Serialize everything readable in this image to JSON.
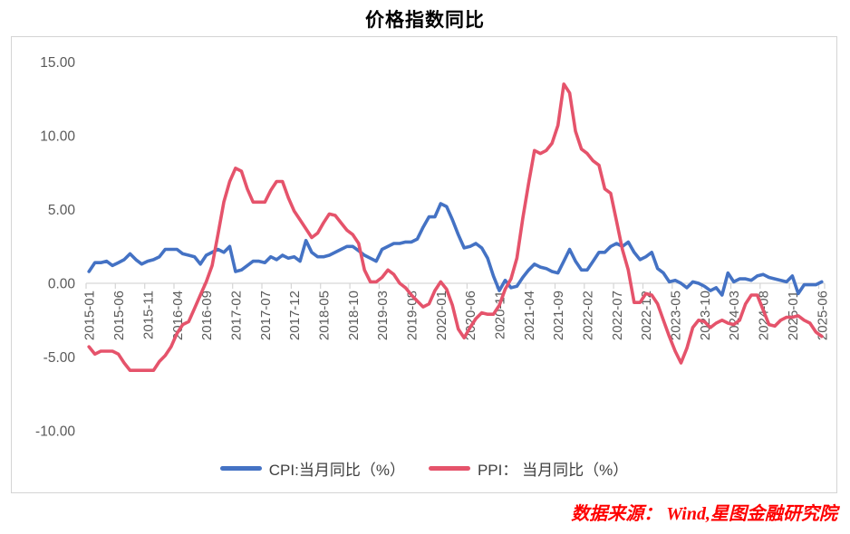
{
  "title": "价格指数同比",
  "source_note": "数据来源： Wind,星图金融研究院",
  "legend": [
    {
      "label": "CPI:当月同比（%）",
      "color": "#4472C4"
    },
    {
      "label": "PPI： 当月同比（%）",
      "color": "#E5536B"
    }
  ],
  "chart_data": {
    "type": "line",
    "title": "价格指数同比",
    "xlabel": "",
    "ylabel": "",
    "ylim": [
      -10,
      15
    ],
    "grid": false,
    "legend_position": "bottom",
    "y_ticks": [
      15,
      10,
      5,
      0,
      -5,
      -10
    ],
    "y_tick_labels": [
      "15.00",
      "10.00",
      "5.00",
      "0.00",
      "-5.00",
      "-10.00"
    ],
    "x_tick_labels": [
      "2015-01",
      "2015-06",
      "2015-11",
      "2016-04",
      "2016-09",
      "2017-02",
      "2017-07",
      "2017-12",
      "2018-05",
      "2018-10",
      "2019-03",
      "2019-08",
      "2020-01",
      "2020-06",
      "2020-11",
      "2021-04",
      "2021-09",
      "2022-02",
      "2022-07",
      "2022-12",
      "2023-05",
      "2023-10",
      "2024-03",
      "2024-08",
      "2025-01",
      "2025-06"
    ],
    "x": [
      "2015-01",
      "2015-02",
      "2015-03",
      "2015-04",
      "2015-05",
      "2015-06",
      "2015-07",
      "2015-08",
      "2015-09",
      "2015-10",
      "2015-11",
      "2015-12",
      "2016-01",
      "2016-02",
      "2016-03",
      "2016-04",
      "2016-05",
      "2016-06",
      "2016-07",
      "2016-08",
      "2016-09",
      "2016-10",
      "2016-11",
      "2016-12",
      "2017-01",
      "2017-02",
      "2017-03",
      "2017-04",
      "2017-05",
      "2017-06",
      "2017-07",
      "2017-08",
      "2017-09",
      "2017-10",
      "2017-11",
      "2017-12",
      "2018-01",
      "2018-02",
      "2018-03",
      "2018-04",
      "2018-05",
      "2018-06",
      "2018-07",
      "2018-08",
      "2018-09",
      "2018-10",
      "2018-11",
      "2018-12",
      "2019-01",
      "2019-02",
      "2019-03",
      "2019-04",
      "2019-05",
      "2019-06",
      "2019-07",
      "2019-08",
      "2019-09",
      "2019-10",
      "2019-11",
      "2019-12",
      "2020-01",
      "2020-02",
      "2020-03",
      "2020-04",
      "2020-05",
      "2020-06",
      "2020-07",
      "2020-08",
      "2020-09",
      "2020-10",
      "2020-11",
      "2020-12",
      "2021-01",
      "2021-02",
      "2021-03",
      "2021-04",
      "2021-05",
      "2021-06",
      "2021-07",
      "2021-08",
      "2021-09",
      "2021-10",
      "2021-11",
      "2021-12",
      "2022-01",
      "2022-02",
      "2022-03",
      "2022-04",
      "2022-05",
      "2022-06",
      "2022-07",
      "2022-08",
      "2022-09",
      "2022-10",
      "2022-11",
      "2022-12",
      "2023-01",
      "2023-02",
      "2023-03",
      "2023-04",
      "2023-05",
      "2023-06",
      "2023-07",
      "2023-08",
      "2023-09",
      "2023-10",
      "2023-11",
      "2023-12",
      "2024-01",
      "2024-02",
      "2024-03",
      "2024-04",
      "2024-05",
      "2024-06",
      "2024-07",
      "2024-08",
      "2024-09",
      "2024-10",
      "2024-11",
      "2024-12",
      "2025-01",
      "2025-02",
      "2025-03",
      "2025-04",
      "2025-05",
      "2025-06"
    ],
    "series": [
      {
        "id": "cpi",
        "name": "CPI:当月同比（%）",
        "color": "#4472C4",
        "values": [
          0.8,
          1.4,
          1.4,
          1.5,
          1.2,
          1.4,
          1.6,
          2.0,
          1.6,
          1.3,
          1.5,
          1.6,
          1.8,
          2.3,
          2.3,
          2.3,
          2.0,
          1.9,
          1.8,
          1.3,
          1.9,
          2.1,
          2.3,
          2.1,
          2.5,
          0.8,
          0.9,
          1.2,
          1.5,
          1.5,
          1.4,
          1.8,
          1.6,
          1.9,
          1.7,
          1.8,
          1.5,
          2.9,
          2.1,
          1.8,
          1.8,
          1.9,
          2.1,
          2.3,
          2.5,
          2.5,
          2.2,
          1.9,
          1.7,
          1.5,
          2.3,
          2.5,
          2.7,
          2.7,
          2.8,
          2.8,
          3.0,
          3.8,
          4.5,
          4.5,
          5.4,
          5.2,
          4.3,
          3.3,
          2.4,
          2.5,
          2.7,
          2.4,
          1.7,
          0.5,
          -0.5,
          0.2,
          -0.3,
          -0.2,
          0.4,
          0.9,
          1.3,
          1.1,
          1.0,
          0.8,
          0.7,
          1.5,
          2.3,
          1.5,
          0.9,
          0.9,
          1.5,
          2.1,
          2.1,
          2.5,
          2.7,
          2.5,
          2.8,
          2.1,
          1.6,
          1.8,
          2.1,
          1.0,
          0.7,
          0.1,
          0.2,
          0.0,
          -0.3,
          0.1,
          0.0,
          -0.2,
          -0.5,
          -0.3,
          -0.8,
          0.7,
          0.1,
          0.3,
          0.3,
          0.2,
          0.5,
          0.6,
          0.4,
          0.3,
          0.2,
          0.1,
          0.5,
          -0.7,
          -0.1,
          -0.1,
          -0.1,
          0.1
        ]
      },
      {
        "id": "ppi",
        "name": "PPI： 当月同比（%）",
        "color": "#E5536B",
        "values": [
          -4.3,
          -4.8,
          -4.6,
          -4.6,
          -4.6,
          -4.8,
          -5.4,
          -5.9,
          -5.9,
          -5.9,
          -5.9,
          -5.9,
          -5.3,
          -4.9,
          -4.3,
          -3.4,
          -2.8,
          -2.6,
          -1.7,
          -0.8,
          0.1,
          1.2,
          3.3,
          5.5,
          6.9,
          7.8,
          7.6,
          6.4,
          5.5,
          5.5,
          5.5,
          6.3,
          6.9,
          6.9,
          5.8,
          4.9,
          4.3,
          3.7,
          3.1,
          3.4,
          4.1,
          4.7,
          4.6,
          4.1,
          3.6,
          3.3,
          2.7,
          0.9,
          0.1,
          0.1,
          0.4,
          0.9,
          0.6,
          0.0,
          -0.3,
          -0.8,
          -1.2,
          -1.6,
          -1.4,
          -0.5,
          0.1,
          -0.4,
          -1.5,
          -3.1,
          -3.7,
          -3.0,
          -2.4,
          -2.0,
          -2.1,
          -2.1,
          -1.5,
          -0.4,
          0.3,
          1.7,
          4.4,
          6.8,
          9.0,
          8.8,
          9.0,
          9.5,
          10.7,
          13.5,
          12.9,
          10.3,
          9.1,
          8.8,
          8.3,
          8.0,
          6.4,
          6.1,
          4.2,
          2.3,
          0.9,
          -1.3,
          -1.3,
          -0.7,
          -0.8,
          -1.4,
          -2.5,
          -3.6,
          -4.6,
          -5.4,
          -4.4,
          -3.0,
          -2.5,
          -2.6,
          -3.0,
          -2.7,
          -2.5,
          -2.7,
          -2.8,
          -2.5,
          -1.4,
          -0.8,
          -0.8,
          -1.8,
          -2.8,
          -2.9,
          -2.5,
          -2.3,
          -2.3,
          -2.2,
          -2.5,
          -2.7,
          -3.3,
          -3.6
        ]
      }
    ]
  }
}
